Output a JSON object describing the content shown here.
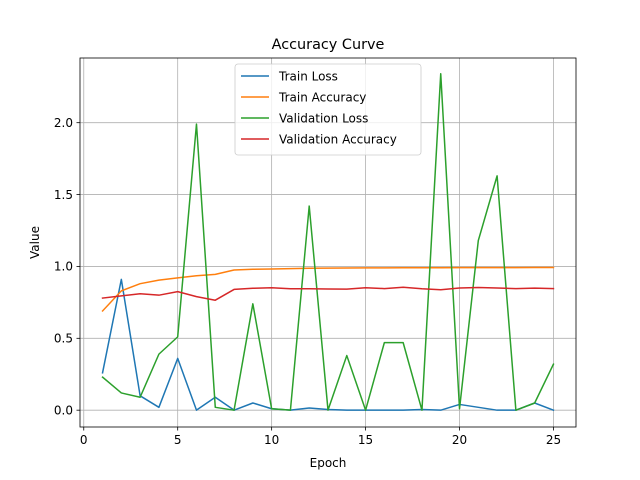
{
  "chart_data": {
    "type": "line",
    "title": "Accuracy Curve",
    "xlabel": "Epoch",
    "ylabel": "Value",
    "xlim": [
      -0.2,
      26.2
    ],
    "ylim": [
      -0.117,
      2.45
    ],
    "xticks": [
      0,
      5,
      10,
      15,
      20,
      25
    ],
    "yticks": [
      0.0,
      0.5,
      1.0,
      1.5,
      2.0
    ],
    "ytick_labels": [
      "0.0",
      "0.5",
      "1.0",
      "1.5",
      "2.0"
    ],
    "grid": true,
    "legend_position": "top-center",
    "x": [
      1,
      2,
      3,
      4,
      5,
      6,
      7,
      8,
      9,
      10,
      11,
      12,
      13,
      14,
      15,
      16,
      17,
      18,
      19,
      20,
      21,
      22,
      23,
      24,
      25
    ],
    "series": [
      {
        "name": "Train Loss",
        "color": "#1f77b4",
        "values": [
          0.26,
          0.91,
          0.1,
          0.02,
          0.36,
          0.0,
          0.09,
          0.0,
          0.05,
          0.01,
          0.0,
          0.015,
          0.005,
          0.0,
          0.0,
          0.0,
          0.0,
          0.005,
          0.0,
          0.04,
          0.02,
          0.0,
          0.0,
          0.05,
          0.0
        ]
      },
      {
        "name": "Train Accuracy",
        "color": "#ff7f0e",
        "values": [
          0.69,
          0.83,
          0.88,
          0.905,
          0.92,
          0.935,
          0.945,
          0.975,
          0.98,
          0.982,
          0.985,
          0.987,
          0.988,
          0.989,
          0.99,
          0.99,
          0.991,
          0.991,
          0.991,
          0.992,
          0.992,
          0.992,
          0.992,
          0.993,
          0.993
        ]
      },
      {
        "name": "Validation Loss",
        "color": "#2ca02c",
        "values": [
          0.23,
          0.12,
          0.09,
          0.39,
          0.51,
          1.99,
          0.02,
          0.0,
          0.74,
          0.01,
          0.0,
          1.42,
          0.0,
          0.38,
          0.0,
          0.47,
          0.47,
          0.0,
          2.34,
          0.01,
          1.18,
          1.63,
          0.0,
          0.05,
          0.32
        ]
      },
      {
        "name": "Validation Accuracy",
        "color": "#d62728",
        "values": [
          0.78,
          0.795,
          0.81,
          0.8,
          0.825,
          0.79,
          0.765,
          0.84,
          0.848,
          0.852,
          0.845,
          0.845,
          0.843,
          0.842,
          0.852,
          0.846,
          0.855,
          0.845,
          0.838,
          0.85,
          0.853,
          0.85,
          0.846,
          0.849,
          0.846
        ]
      }
    ]
  }
}
